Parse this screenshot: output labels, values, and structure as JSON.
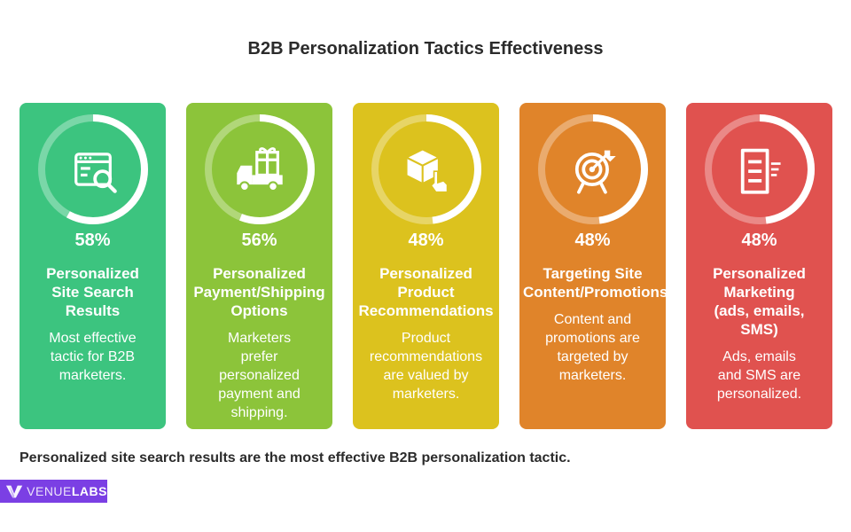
{
  "title": "B2B Personalization Tactics Effectiveness",
  "footer": "Personalized site search results are the most effective B2B personalization tactic.",
  "logo": {
    "part1": "VENUE",
    "part2": "LABS"
  },
  "colors": {
    "text_dark": "#2b2b2b",
    "logo_bg": "#7b3fe4",
    "cards": [
      "#3cc47f",
      "#8cc43a",
      "#dcc21e",
      "#e0842a",
      "#e0524f"
    ]
  },
  "chart_data": {
    "type": "table",
    "title": "B2B Personalization Tactics Effectiveness",
    "value_unit": "%",
    "items": [
      {
        "label_lines": [
          "Personalized",
          "Site Search",
          "Results"
        ],
        "value": 58,
        "value_label": "58%",
        "description_lines": [
          "Most effective",
          "tactic for B2B",
          "marketers."
        ],
        "icon": "search-window-icon",
        "color": "#3cc47f"
      },
      {
        "label_lines": [
          "Personalized",
          "Payment/Shipping",
          "Options"
        ],
        "value": 56,
        "value_label": "56%",
        "description_lines": [
          "Marketers",
          "prefer",
          "personalized",
          "payment and",
          "shipping."
        ],
        "icon": "delivery-truck-gift-icon",
        "color": "#8cc43a"
      },
      {
        "label_lines": [
          "Personalized",
          "Product",
          "Recommendations"
        ],
        "value": 48,
        "value_label": "48%",
        "description_lines": [
          "Product",
          "recommendations",
          "are valued by",
          "marketers."
        ],
        "icon": "box-pointer-icon",
        "color": "#dcc21e"
      },
      {
        "label_lines": [
          "Targeting Site",
          "Content/Promotions"
        ],
        "value": 48,
        "value_label": "48%",
        "description_lines": [
          "Content and",
          "promotions are",
          "targeted by",
          "marketers."
        ],
        "icon": "target-icon",
        "color": "#e0842a"
      },
      {
        "label_lines": [
          "Personalized",
          "Marketing",
          "(ads, emails,",
          "SMS)"
        ],
        "value": 48,
        "value_label": "48%",
        "description_lines": [
          "Ads, emails",
          "and SMS are",
          "personalized."
        ],
        "icon": "document-lines-icon",
        "color": "#e0524f"
      }
    ]
  }
}
